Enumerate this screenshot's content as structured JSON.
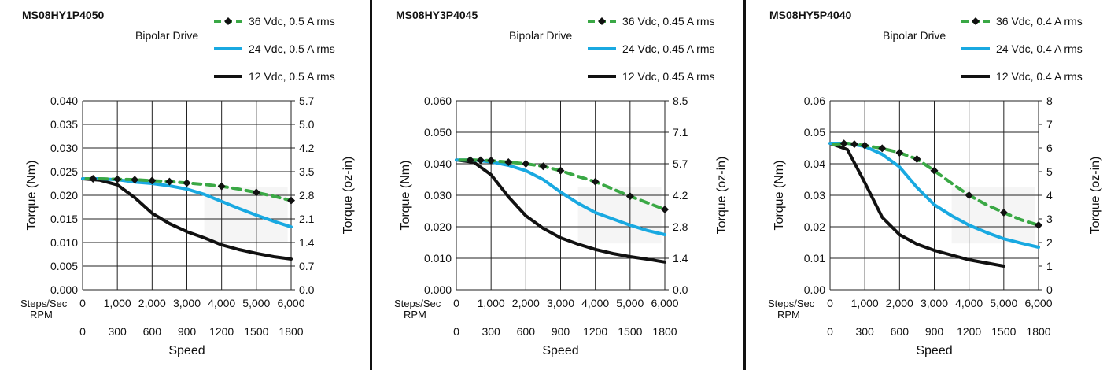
{
  "chart_data": [
    {
      "type": "line",
      "title": "MS08HY1P4050",
      "subtitle": "Bipolar Drive",
      "ylabel": "Torque (Nm)",
      "y2label": "Torque (oz-in)",
      "xlabel": "Speed",
      "x_row_labels": [
        "Steps/Sec",
        "RPM"
      ],
      "x_ticks": [
        "0",
        "1,000",
        "2,000",
        "3,000",
        "4,000",
        "5,000",
        "6,000"
      ],
      "rpm_ticks": [
        "0",
        "300",
        "600",
        "900",
        "1200",
        "1500",
        "1800"
      ],
      "xlim": [
        0,
        6000
      ],
      "ylim": [
        0,
        0.04
      ],
      "y_ticks": [
        "0.000",
        "0.005",
        "0.010",
        "0.015",
        "0.020",
        "0.025",
        "0.030",
        "0.035",
        "0.040"
      ],
      "y2_ticks": [
        "0.0",
        "0.7",
        "1.4",
        "2.1",
        "2.8",
        "3.5",
        "4.2",
        "5.0",
        "5.7"
      ],
      "grid": true,
      "legend": "top-right",
      "series": [
        {
          "name": "36 Vdc, 0.5 A rms",
          "color": "#3aa845",
          "style": "dashed-markers",
          "x": [
            100,
            500,
            1000,
            1500,
            2000,
            2500,
            3000,
            3500,
            4000,
            4500,
            5000,
            5500,
            6000
          ],
          "y": [
            0.0235,
            0.0235,
            0.0234,
            0.0233,
            0.0231,
            0.0229,
            0.0226,
            0.0223,
            0.0219,
            0.0213,
            0.0206,
            0.0198,
            0.0189
          ],
          "markers_x": [
            300,
            1000,
            1500,
            2000,
            2500,
            3000,
            4000,
            5000,
            6000
          ]
        },
        {
          "name": "24 Vdc, 0.5 A rms",
          "color": "#19a9e1",
          "style": "solid",
          "x": [
            0,
            500,
            1000,
            1500,
            2000,
            2500,
            3000,
            3500,
            4000,
            4500,
            5000,
            5500,
            6000
          ],
          "y": [
            0.0235,
            0.0235,
            0.0233,
            0.0228,
            0.0225,
            0.022,
            0.0213,
            0.0202,
            0.0187,
            0.0172,
            0.0158,
            0.0145,
            0.0133
          ]
        },
        {
          "name": "12 Vdc, 0.5 A rms",
          "color": "#111111",
          "style": "solid",
          "x": [
            0,
            500,
            1000,
            1500,
            2000,
            2500,
            3000,
            3500,
            4000,
            4500,
            5000,
            5500,
            6000
          ],
          "y": [
            0.0235,
            0.0232,
            0.0222,
            0.0195,
            0.0162,
            0.014,
            0.0123,
            0.011,
            0.0095,
            0.0085,
            0.0077,
            0.007,
            0.0065
          ]
        }
      ]
    },
    {
      "type": "line",
      "title": "MS08HY3P4045",
      "subtitle": "Bipolar Drive",
      "ylabel": "Torque (Nm)",
      "y2label": "Torque (oz-in)",
      "xlabel": "Speed",
      "x_row_labels": [
        "Steps/Sec",
        "RPM"
      ],
      "x_ticks": [
        "0",
        "1,000",
        "2,000",
        "3,000",
        "4,000",
        "5,000",
        "6,000"
      ],
      "rpm_ticks": [
        "0",
        "300",
        "600",
        "900",
        "1200",
        "1500",
        "1800"
      ],
      "xlim": [
        0,
        6000
      ],
      "ylim": [
        0,
        0.06
      ],
      "y_ticks": [
        "0.000",
        "0.010",
        "0.020",
        "0.030",
        "0.040",
        "0.050",
        "0.060"
      ],
      "y2_ticks": [
        "0.0",
        "1.4",
        "2.8",
        "4.2",
        "5.7",
        "7.1",
        "8.5"
      ],
      "grid": true,
      "legend": "top-right",
      "series": [
        {
          "name": "36 Vdc, 0.45 A rms",
          "color": "#3aa845",
          "style": "dashed-markers",
          "x": [
            100,
            500,
            1000,
            1500,
            2000,
            2500,
            3000,
            3500,
            4000,
            4500,
            5000,
            5500,
            6000
          ],
          "y": [
            0.0412,
            0.0412,
            0.041,
            0.0405,
            0.04,
            0.0392,
            0.0378,
            0.036,
            0.0343,
            0.032,
            0.0297,
            0.0276,
            0.0255
          ],
          "markers_x": [
            400,
            700,
            1000,
            1500,
            2000,
            2500,
            3000,
            4000,
            5000,
            6000
          ]
        },
        {
          "name": "24 Vdc, 0.45 A rms",
          "color": "#19a9e1",
          "style": "solid",
          "x": [
            0,
            500,
            1000,
            1500,
            2000,
            2500,
            3000,
            3500,
            4000,
            4500,
            5000,
            5500,
            6000
          ],
          "y": [
            0.0412,
            0.0412,
            0.0406,
            0.0395,
            0.0378,
            0.035,
            0.031,
            0.0275,
            0.0245,
            0.0225,
            0.0205,
            0.0188,
            0.0175
          ]
        },
        {
          "name": "12 Vdc, 0.45 A rms",
          "color": "#111111",
          "style": "solid",
          "x": [
            0,
            500,
            1000,
            1500,
            2000,
            2500,
            3000,
            3500,
            4000,
            4500,
            5000,
            5500,
            6000
          ],
          "y": [
            0.0412,
            0.0405,
            0.0365,
            0.0295,
            0.0235,
            0.0195,
            0.0165,
            0.0145,
            0.0128,
            0.0115,
            0.0105,
            0.0097,
            0.0088
          ]
        }
      ]
    },
    {
      "type": "line",
      "title": "MS08HY5P4040",
      "subtitle": "Bipolar Drive",
      "ylabel": "Torque (Nm)",
      "y2label": "Torque (oz-in)",
      "xlabel": "Speed",
      "x_row_labels": [
        "Steps/Sec",
        "RPM"
      ],
      "x_ticks": [
        "0",
        "1,000",
        "2,000",
        "3,000",
        "4,000",
        "5,000",
        "6,000"
      ],
      "rpm_ticks": [
        "0",
        "300",
        "600",
        "900",
        "1200",
        "1500",
        "1800"
      ],
      "xlim": [
        0,
        6000
      ],
      "ylim": [
        0,
        0.06
      ],
      "y_ticks": [
        "0.00",
        "0.01",
        "0.02",
        "0.03",
        "0.04",
        "0.05",
        "0.06"
      ],
      "y2_ticks": [
        "0",
        "1",
        "2",
        "3",
        "4",
        "5",
        "6",
        "7",
        "8"
      ],
      "grid": true,
      "legend": "top-right",
      "series": [
        {
          "name": "36 Vdc, 0.4 A rms",
          "color": "#3aa845",
          "style": "dashed-markers",
          "x": [
            100,
            500,
            1000,
            1500,
            2000,
            2500,
            3000,
            3500,
            4000,
            4500,
            5000,
            5500,
            6000
          ],
          "y": [
            0.0462,
            0.0465,
            0.0458,
            0.0449,
            0.0435,
            0.0415,
            0.0378,
            0.0338,
            0.03,
            0.027,
            0.0245,
            0.0222,
            0.0205
          ],
          "markers_x": [
            400,
            700,
            1000,
            1500,
            2000,
            2500,
            3000,
            4000,
            5000,
            6000
          ]
        },
        {
          "name": "24 Vdc, 0.4 A rms",
          "color": "#19a9e1",
          "style": "solid",
          "x": [
            0,
            500,
            1000,
            1500,
            2000,
            2500,
            3000,
            3500,
            4000,
            4500,
            5000,
            5500,
            6000
          ],
          "y": [
            0.0465,
            0.0465,
            0.0455,
            0.043,
            0.039,
            0.0325,
            0.027,
            0.0235,
            0.0205,
            0.0182,
            0.0162,
            0.0148,
            0.0135
          ]
        },
        {
          "name": "12 Vdc, 0.4 A rms",
          "color": "#111111",
          "style": "solid",
          "x": [
            0,
            500,
            1000,
            1500,
            2000,
            2500,
            3000,
            3500,
            4000,
            4500,
            5000
          ],
          "y": [
            0.0465,
            0.0445,
            0.034,
            0.023,
            0.0175,
            0.0145,
            0.0125,
            0.011,
            0.0095,
            0.0085,
            0.0075
          ]
        }
      ]
    }
  ]
}
